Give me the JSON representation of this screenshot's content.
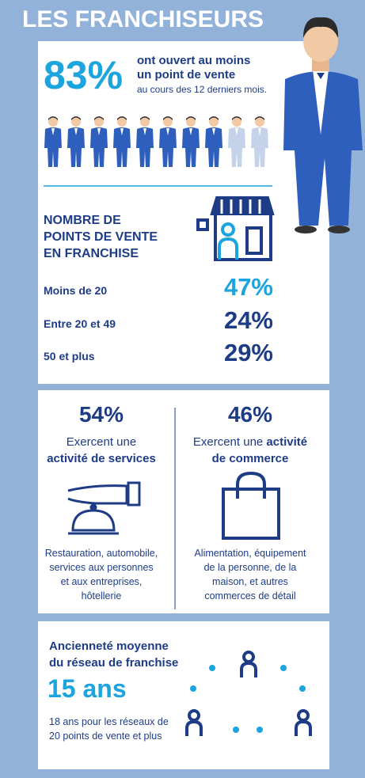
{
  "header": {
    "title": "LES FRANCHISEURS"
  },
  "opening": {
    "percent": "83%",
    "lines": [
      "ont ouvert au moins",
      "un point de vente"
    ],
    "period": "au cours des 12 derniers mois."
  },
  "outlets": {
    "heading_lines": [
      "NOMBRE DE",
      "POINTS DE VENTE",
      "EN FRANCHISE"
    ],
    "rows": [
      {
        "label": "Moins de 20",
        "percent": "47%"
      },
      {
        "label": "Entre 20 et 49",
        "percent": "24%"
      },
      {
        "label": "50 et plus",
        "percent": "29%"
      }
    ]
  },
  "activities": {
    "services": {
      "percent": "54%",
      "intro": "Exercent une",
      "activity_lines": [
        "activité de services"
      ],
      "description_lines": [
        "Restauration, automobile,",
        "services aux personnes",
        "et aux entreprises,",
        "hôtellerie"
      ]
    },
    "commerce": {
      "percent": "46%",
      "intro": "Exercent une",
      "activity_lines": [
        "activité",
        "de commerce"
      ],
      "description_lines": [
        "Alimentation, équipement",
        "de la personne, de la",
        "maison, et autres",
        "commerces de détail"
      ]
    }
  },
  "seniority": {
    "heading_lines": [
      "Ancienneté moyenne",
      "du réseau de franchise"
    ],
    "value": "15 ans",
    "note_lines": [
      "18 ans pour les réseaux de",
      "20 points de vente et plus"
    ]
  }
}
